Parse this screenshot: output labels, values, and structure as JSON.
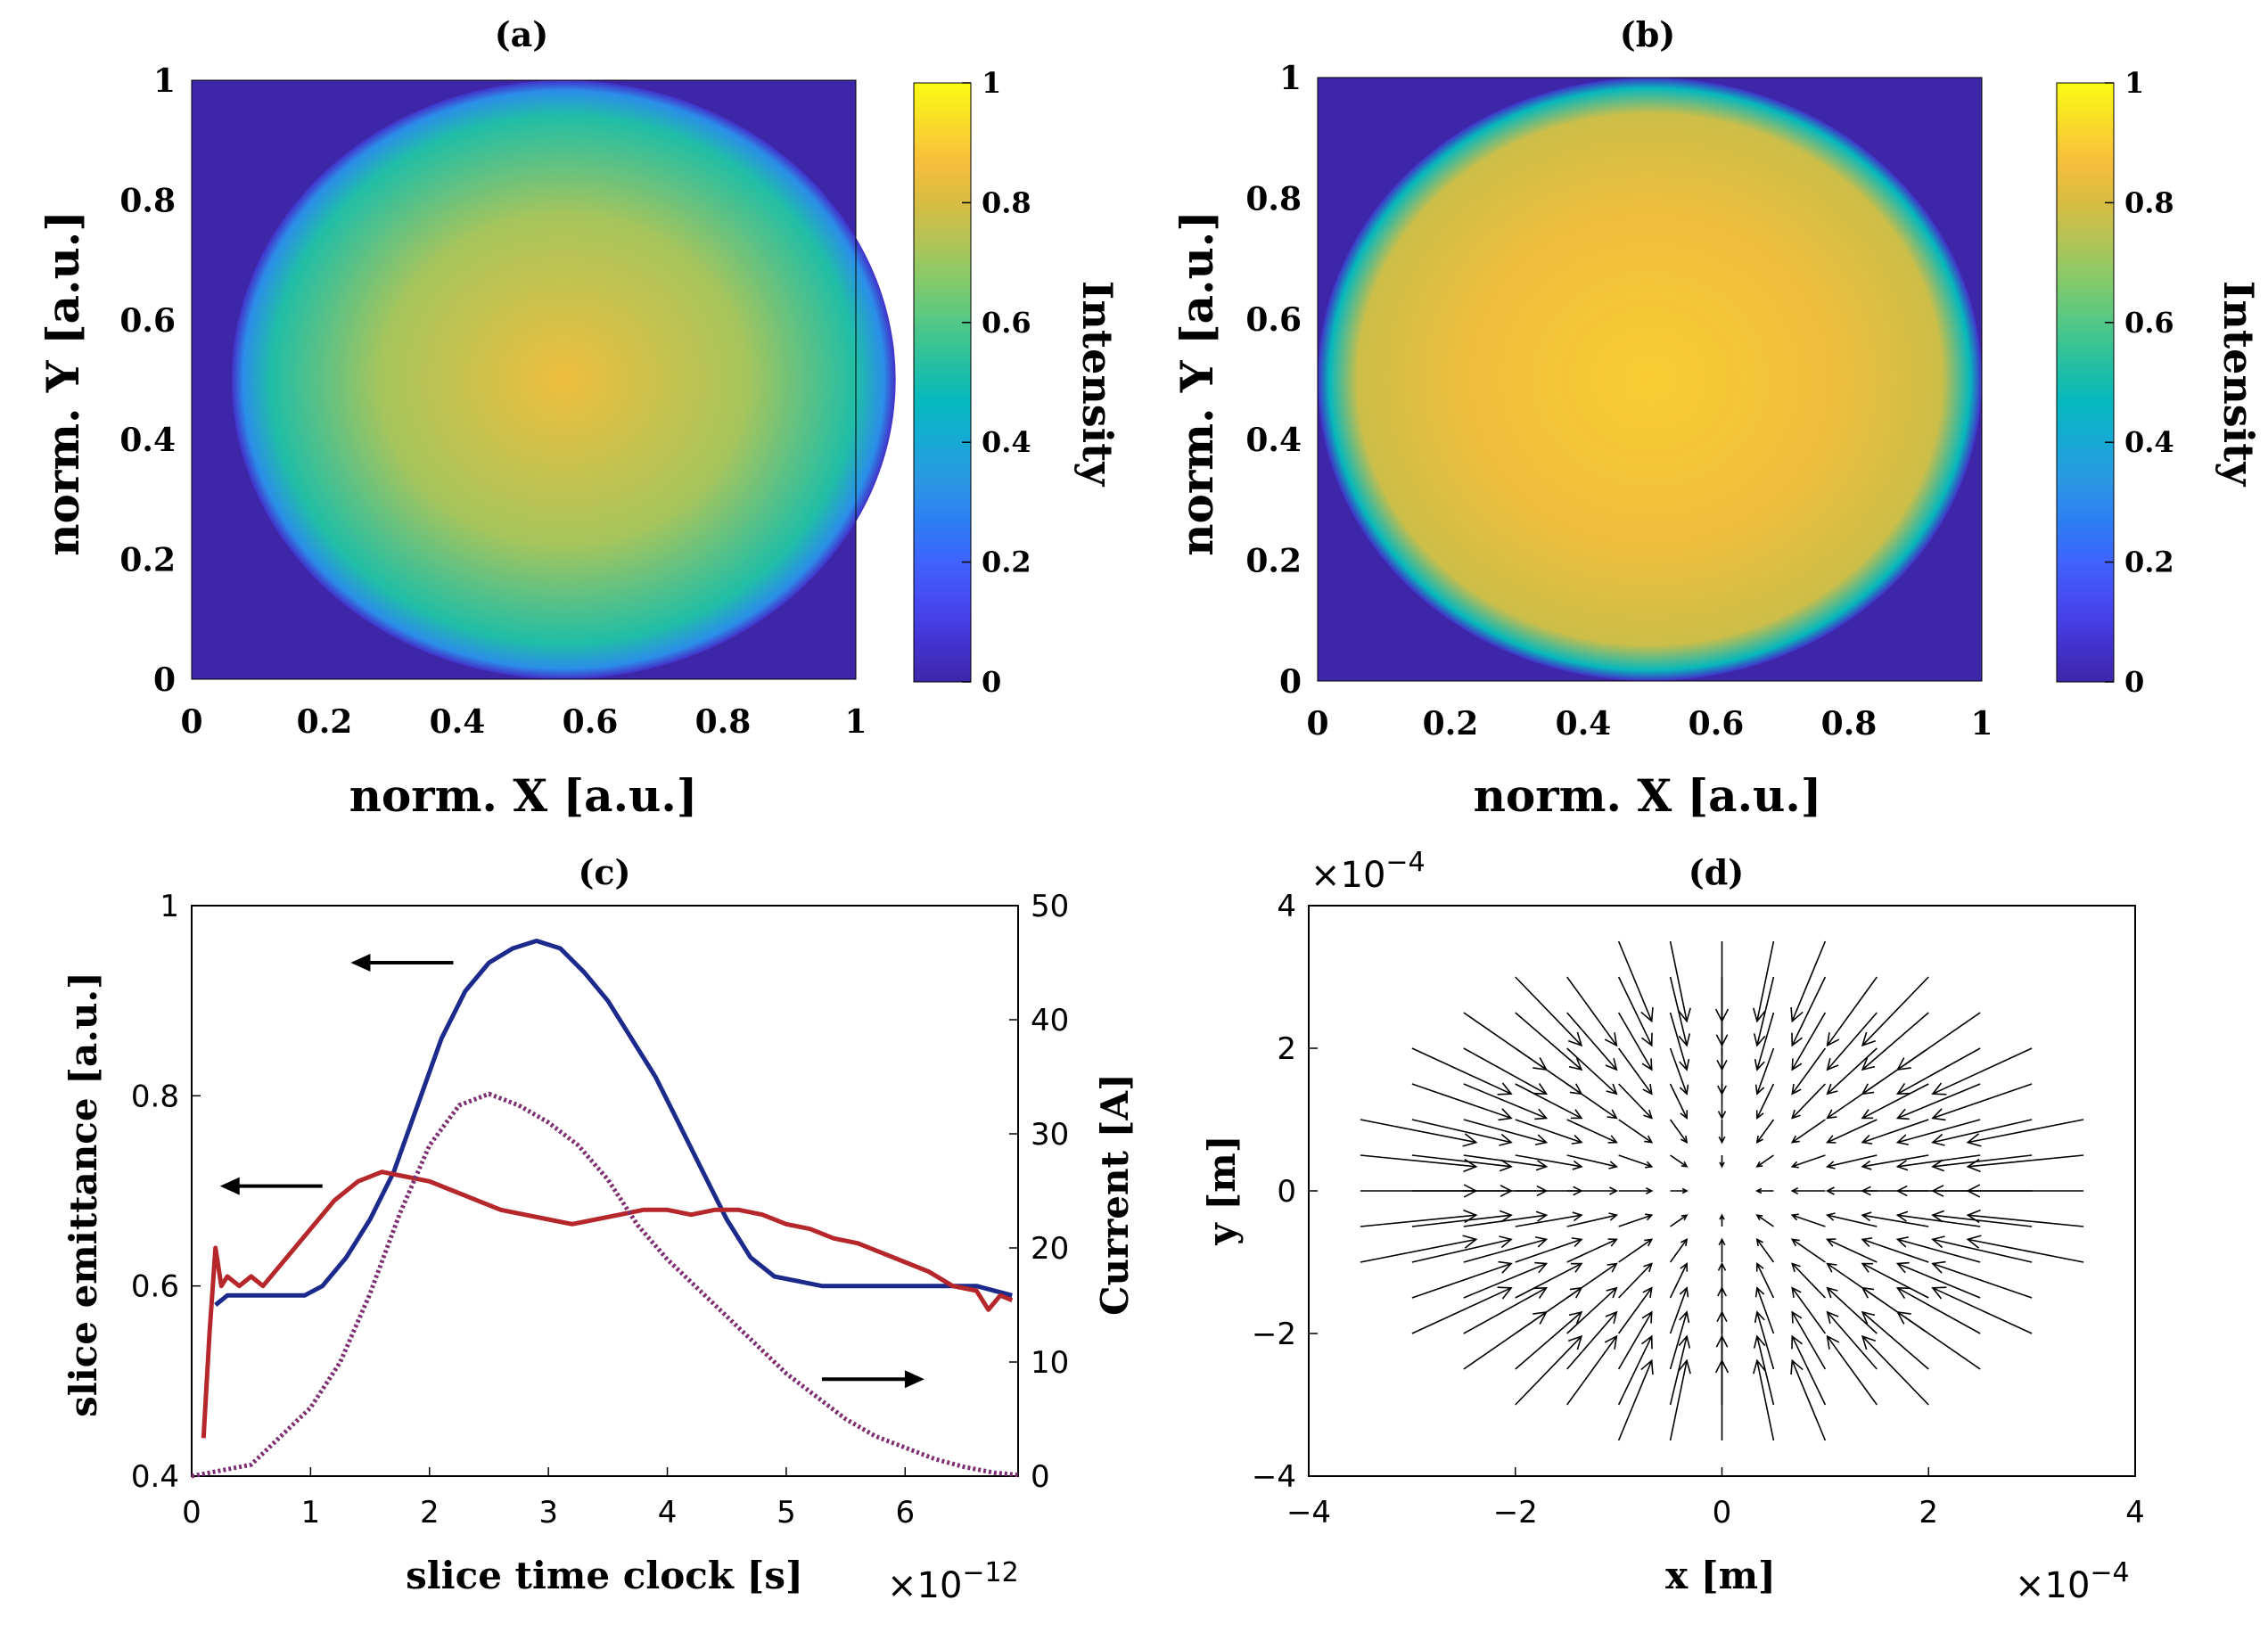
{
  "panels": {
    "a": {
      "title": "(a)",
      "xlabel": "norm. X [a.u.]",
      "ylabel": "norm. Y [a.u.]",
      "cbar_label": "Intensity"
    },
    "b": {
      "title": "(b)",
      "xlabel": "norm. X [a.u.]",
      "ylabel": "norm. Y [a.u.]",
      "cbar_label": "Intensity"
    },
    "c": {
      "title": "(c)",
      "xlabel": "slice time clock [s]",
      "ylabel_left": "slice emittance [a.u.]",
      "ylabel_right": "Current [A]",
      "x_exponent_base": "×10",
      "x_exponent_power": "−12"
    },
    "d": {
      "title": "(d)",
      "xlabel": "x [m]",
      "ylabel": "y [m]",
      "exponent_base": "×10",
      "exponent_power": "−4"
    }
  },
  "colors": {
    "parula": [
      "#3e26a8",
      "#4433d3",
      "#4749f2",
      "#3f63fc",
      "#2c7ef4",
      "#2b96e4",
      "#17a9d5",
      "#05b8bd",
      "#27c0a0",
      "#53c786",
      "#82ca6b",
      "#b1c457",
      "#d8bc42",
      "#f6be3b",
      "#fadb29",
      "#f9fb15"
    ],
    "emittance_blue": "#1c2a8c",
    "emittance_red": "#b5272a",
    "current_dotted": "#7d2f72"
  },
  "chart_data": [
    {
      "type": "heatmap",
      "panel": "a",
      "title": "(a)",
      "description": "circular transverse beam profile, peaked center",
      "xlim": [
        0,
        1
      ],
      "ylim": [
        0,
        1
      ],
      "xticks": [
        "0",
        "0.2",
        "0.4",
        "0.6",
        "0.8",
        "1"
      ],
      "yticks": [
        "0",
        "0.2",
        "0.4",
        "0.6",
        "0.8",
        "1"
      ],
      "clim": [
        0,
        1
      ],
      "cticks": [
        "0",
        "0.2",
        "0.4",
        "0.6",
        "0.8",
        "1"
      ],
      "profile": {
        "center": [
          0.56,
          0.5
        ],
        "radius": 0.5,
        "intensity_center": 0.85,
        "intensity_edge": 0.52
      }
    },
    {
      "type": "heatmap",
      "panel": "b",
      "title": "(b)",
      "description": "circular transverse beam profile, flat-top",
      "xlim": [
        0,
        1
      ],
      "ylim": [
        0,
        1
      ],
      "xticks": [
        "0",
        "0.2",
        "0.4",
        "0.6",
        "0.8",
        "1"
      ],
      "yticks": [
        "0",
        "0.2",
        "0.4",
        "0.6",
        "0.8",
        "1"
      ],
      "clim": [
        0,
        1
      ],
      "cticks": [
        "0",
        "0.2",
        "0.4",
        "0.6",
        "0.8",
        "1"
      ],
      "profile": {
        "center": [
          0.5,
          0.5
        ],
        "radius": 0.5,
        "intensity_center": 0.9,
        "intensity_edge": 0.78
      }
    },
    {
      "type": "line",
      "panel": "c",
      "title": "(c)",
      "xlabel": "slice time clock [s]",
      "x_scale": "1e-12",
      "xlim": [
        0,
        6.95
      ],
      "ylim_left": [
        0.4,
        1
      ],
      "ylim_right": [
        0,
        50
      ],
      "xticks": [
        "0",
        "1",
        "2",
        "3",
        "4",
        "5",
        "6"
      ],
      "yticks_left": [
        "0.4",
        "0.6",
        "0.8",
        "1"
      ],
      "yticks_right": [
        "0",
        "10",
        "20",
        "30",
        "40",
        "50"
      ],
      "series": [
        {
          "name": "slice emittance (blue)",
          "axis": "left",
          "x": [
            0.2,
            0.3,
            0.5,
            0.7,
            0.95,
            1.1,
            1.3,
            1.5,
            1.7,
            1.9,
            2.1,
            2.3,
            2.5,
            2.7,
            2.9,
            3.1,
            3.3,
            3.5,
            3.7,
            3.9,
            4.1,
            4.3,
            4.5,
            4.7,
            4.9,
            5.1,
            5.3,
            5.5,
            5.8,
            6.2,
            6.6,
            6.9
          ],
          "y": [
            0.58,
            0.59,
            0.59,
            0.59,
            0.59,
            0.6,
            0.63,
            0.67,
            0.72,
            0.79,
            0.86,
            0.91,
            0.94,
            0.955,
            0.963,
            0.955,
            0.93,
            0.9,
            0.86,
            0.82,
            0.77,
            0.72,
            0.67,
            0.63,
            0.61,
            0.605,
            0.6,
            0.6,
            0.6,
            0.6,
            0.6,
            0.59
          ]
        },
        {
          "name": "slice emittance (red)",
          "axis": "left",
          "x": [
            0.1,
            0.15,
            0.2,
            0.25,
            0.3,
            0.4,
            0.5,
            0.6,
            0.8,
            1.0,
            1.2,
            1.4,
            1.6,
            1.8,
            2.0,
            2.2,
            2.4,
            2.6,
            2.8,
            3.0,
            3.2,
            3.4,
            3.6,
            3.8,
            4.0,
            4.2,
            4.4,
            4.6,
            4.8,
            5.0,
            5.2,
            5.4,
            5.6,
            5.8,
            6.0,
            6.2,
            6.4,
            6.6,
            6.7,
            6.8,
            6.9
          ],
          "y": [
            0.44,
            0.55,
            0.64,
            0.6,
            0.61,
            0.6,
            0.61,
            0.6,
            0.63,
            0.66,
            0.69,
            0.71,
            0.72,
            0.715,
            0.71,
            0.7,
            0.69,
            0.68,
            0.675,
            0.67,
            0.665,
            0.67,
            0.675,
            0.68,
            0.68,
            0.675,
            0.68,
            0.68,
            0.675,
            0.665,
            0.66,
            0.65,
            0.645,
            0.635,
            0.625,
            0.615,
            0.6,
            0.595,
            0.575,
            0.59,
            0.585
          ]
        },
        {
          "name": "current (dotted)",
          "axis": "right",
          "x": [
            0.0,
            0.5,
            1.0,
            1.25,
            1.5,
            1.75,
            2.0,
            2.25,
            2.5,
            2.75,
            3.0,
            3.25,
            3.5,
            3.75,
            4.0,
            4.25,
            4.5,
            4.75,
            5.0,
            5.25,
            5.5,
            5.75,
            6.0,
            6.25,
            6.5,
            6.75,
            6.95
          ],
          "y": [
            0.0,
            1.0,
            6.0,
            10.0,
            16.0,
            23.0,
            29.0,
            32.5,
            33.5,
            32.5,
            31.0,
            29.0,
            26.0,
            22.0,
            19.0,
            16.5,
            14.0,
            11.5,
            9.0,
            7.0,
            5.0,
            3.5,
            2.5,
            1.5,
            0.8,
            0.3,
            0.1
          ]
        }
      ],
      "annotations": [
        {
          "type": "arrow",
          "points": "left",
          "x": 2.2,
          "y": 0.94
        },
        {
          "type": "arrow",
          "points": "left",
          "x": 1.1,
          "y": 0.705
        },
        {
          "type": "arrow",
          "points": "right",
          "x": 5.3,
          "y": 0.502
        }
      ]
    },
    {
      "type": "quiver",
      "panel": "d",
      "title": "(d)",
      "xlabel": "x [m]",
      "ylabel": "y [m]",
      "scale": "1e-4",
      "xlim": [
        -4,
        4
      ],
      "ylim": [
        -4,
        4
      ],
      "xticks": [
        "−4",
        "−2",
        "0",
        "2",
        "4"
      ],
      "yticks": [
        "−4",
        "−2",
        "0",
        "2",
        "4"
      ],
      "grid_spacing": 0.5,
      "field": "radially inward, magnitude increasing with radius, limited to r ≤ 3.8"
    }
  ]
}
